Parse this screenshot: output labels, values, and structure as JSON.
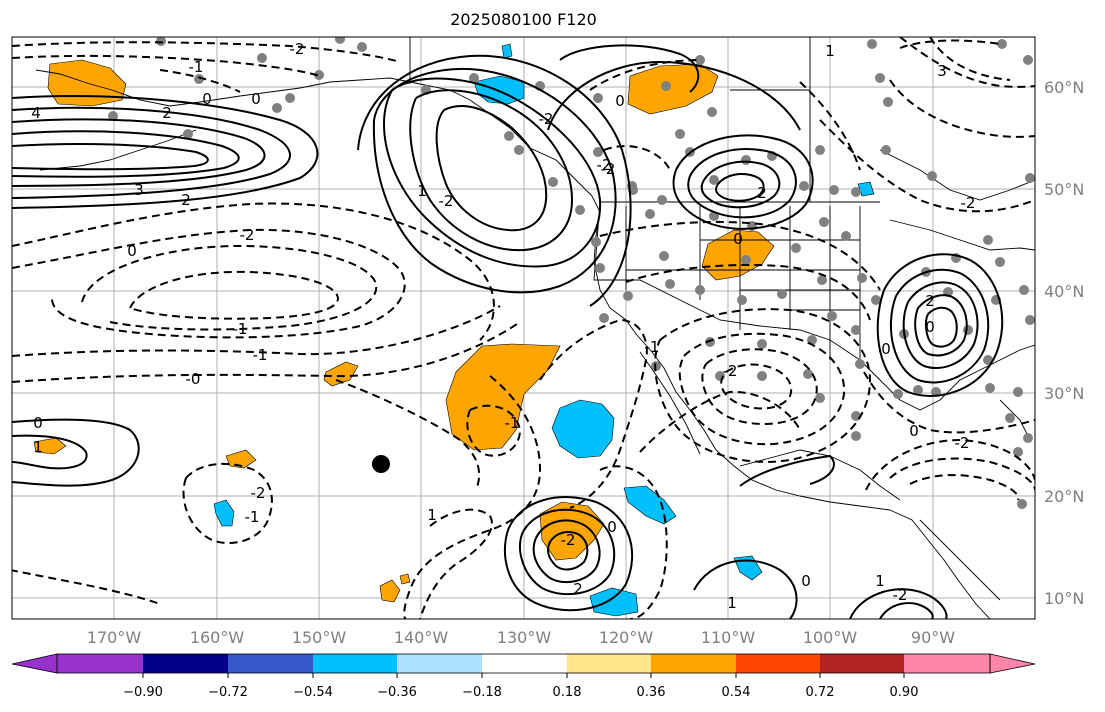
{
  "title": "2025080100 F120",
  "map": {
    "lon_range": [
      -180,
      -80
    ],
    "lat_range": [
      8,
      64.5
    ],
    "lon_labels": [
      "170°W",
      "160°W",
      "150°W",
      "140°W",
      "130°W",
      "120°W",
      "110°W",
      "100°W",
      "90°W"
    ],
    "lat_labels": [
      "60°N",
      "50°N",
      "40°N",
      "30°N",
      "20°N",
      "10°N"
    ],
    "contour_labels": [
      "4",
      "3",
      "2",
      "-1",
      "0",
      "2",
      "0",
      "-2",
      "0",
      "-2",
      "-1",
      "-0",
      "0",
      "1",
      "-1",
      "-2",
      "-2",
      "1",
      "-2",
      "2",
      "1",
      "-2",
      "0",
      "-1",
      "0",
      "-2",
      "2",
      "0",
      "0",
      "-2",
      "3",
      "0",
      "-2",
      "-1",
      "-2",
      "1",
      "0",
      "2",
      "-2",
      "-1",
      "1",
      "-2",
      "0",
      "1"
    ],
    "marker_name": "storm center marker"
  },
  "colorbar": {
    "colors": [
      "#9932CC",
      "#00008B",
      "#3457CC",
      "#00BFFF",
      "#AEE0FF",
      "#FFFFFF",
      "#FFE78A",
      "#FFA500",
      "#FF4500",
      "#B22222",
      "#FF85AA"
    ],
    "ticks": [
      "−0.90",
      "−0.72",
      "−0.54",
      "−0.36",
      "−0.18",
      "0.18",
      "0.36",
      "0.54",
      "0.72",
      "0.90"
    ]
  }
}
